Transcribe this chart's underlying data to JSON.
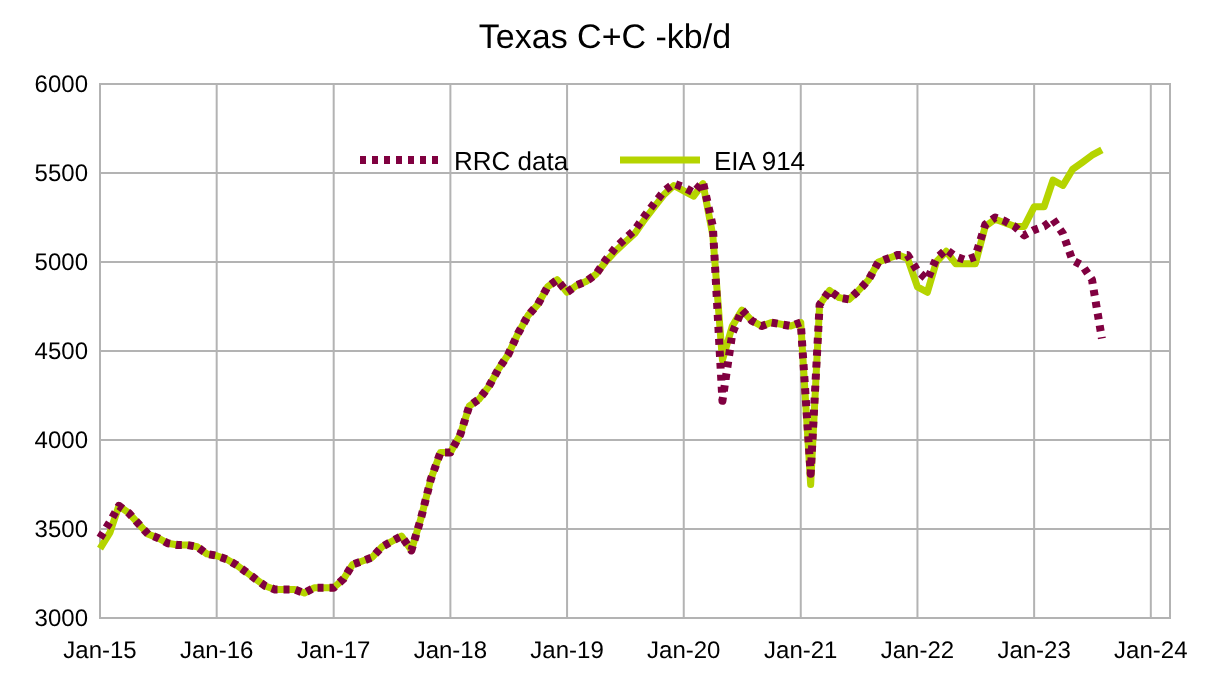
{
  "chart_data": {
    "type": "line",
    "title": "Texas C+C -kb/d",
    "legend": "top",
    "grid": true,
    "x": [
      "2015-01",
      "2015-02",
      "2015-03",
      "2015-04",
      "2015-05",
      "2015-06",
      "2015-07",
      "2015-08",
      "2015-09",
      "2015-10",
      "2015-11",
      "2015-12",
      "2016-01",
      "2016-02",
      "2016-03",
      "2016-04",
      "2016-05",
      "2016-06",
      "2016-07",
      "2016-08",
      "2016-09",
      "2016-10",
      "2016-11",
      "2016-12",
      "2017-01",
      "2017-02",
      "2017-03",
      "2017-04",
      "2017-05",
      "2017-06",
      "2017-07",
      "2017-08",
      "2017-09",
      "2017-10",
      "2017-11",
      "2017-12",
      "2018-01",
      "2018-02",
      "2018-03",
      "2018-04",
      "2018-05",
      "2018-06",
      "2018-07",
      "2018-08",
      "2018-09",
      "2018-10",
      "2018-11",
      "2018-12",
      "2019-01",
      "2019-02",
      "2019-03",
      "2019-04",
      "2019-05",
      "2019-06",
      "2019-07",
      "2019-08",
      "2019-09",
      "2019-10",
      "2019-11",
      "2019-12",
      "2020-01",
      "2020-02",
      "2020-03",
      "2020-04",
      "2020-05",
      "2020-06",
      "2020-07",
      "2020-08",
      "2020-09",
      "2020-10",
      "2020-11",
      "2020-12",
      "2021-01",
      "2021-02",
      "2021-03",
      "2021-04",
      "2021-05",
      "2021-06",
      "2021-07",
      "2021-08",
      "2021-09",
      "2021-10",
      "2021-11",
      "2021-12",
      "2022-01",
      "2022-02",
      "2022-03",
      "2022-04",
      "2022-05",
      "2022-06",
      "2022-07",
      "2022-08",
      "2022-09",
      "2022-10",
      "2022-11",
      "2022-12",
      "2023-01",
      "2023-02",
      "2023-03",
      "2023-04",
      "2023-05",
      "2023-06",
      "2023-07",
      "2023-08"
    ],
    "xlim": [
      "2015-01",
      "2024-03"
    ],
    "xticks": [
      {
        "value": "2015-01",
        "label": "Jan-15"
      },
      {
        "value": "2016-01",
        "label": "Jan-16"
      },
      {
        "value": "2017-01",
        "label": "Jan-17"
      },
      {
        "value": "2018-01",
        "label": "Jan-18"
      },
      {
        "value": "2019-01",
        "label": "Jan-19"
      },
      {
        "value": "2020-01",
        "label": "Jan-20"
      },
      {
        "value": "2021-01",
        "label": "Jan-21"
      },
      {
        "value": "2022-01",
        "label": "Jan-22"
      },
      {
        "value": "2023-01",
        "label": "Jan-23"
      },
      {
        "value": "2024-01",
        "label": "Jan-24"
      }
    ],
    "ylim": [
      3000,
      6000
    ],
    "yticks": [
      3000,
      3500,
      4000,
      4500,
      5000,
      5500,
      6000
    ],
    "series": [
      {
        "name": "RRC data",
        "color": "#800040",
        "line_style": "dotted",
        "values": [
          3450,
          3540,
          3630,
          3590,
          3530,
          3470,
          3450,
          3420,
          3410,
          3410,
          3400,
          3360,
          3350,
          3330,
          3300,
          3260,
          3220,
          3180,
          3160,
          3160,
          3160,
          3140,
          3170,
          3170,
          3170,
          3220,
          3300,
          3320,
          3340,
          3400,
          3430,
          3460,
          3380,
          3560,
          3780,
          3930,
          3930,
          4030,
          4190,
          4230,
          4300,
          4400,
          4480,
          4600,
          4700,
          4760,
          4860,
          4900,
          4830,
          4870,
          4890,
          4930,
          5010,
          5080,
          5130,
          5180,
          5260,
          5330,
          5400,
          5440,
          5420,
          5390,
          5450,
          5200,
          4220,
          4600,
          4730,
          4670,
          4640,
          4660,
          4650,
          4640,
          4660,
          3810,
          4760,
          4840,
          4800,
          4790,
          4840,
          4900,
          5000,
          5020,
          5040,
          5040,
          4950,
          4900,
          5020,
          5070,
          5030,
          5010,
          5030,
          5210,
          5250,
          5230,
          5200,
          5150,
          5180,
          5200,
          5240,
          5160,
          5010,
          4980,
          4900,
          4570
        ]
      },
      {
        "name": "EIA 914",
        "color": "#b5d400",
        "line_style": "solid",
        "values": [
          3390,
          3480,
          3630,
          3590,
          3530,
          3470,
          3450,
          3420,
          3410,
          3410,
          3400,
          3360,
          3350,
          3330,
          3300,
          3260,
          3220,
          3180,
          3160,
          3160,
          3160,
          3140,
          3170,
          3170,
          3170,
          3220,
          3300,
          3320,
          3340,
          3400,
          3430,
          3460,
          3380,
          3560,
          3780,
          3930,
          3930,
          4030,
          4190,
          4230,
          4300,
          4400,
          4480,
          4600,
          4700,
          4760,
          4860,
          4900,
          4830,
          4870,
          4890,
          4930,
          5000,
          5060,
          5110,
          5160,
          5240,
          5310,
          5380,
          5430,
          5400,
          5370,
          5440,
          5150,
          4450,
          4640,
          4730,
          4670,
          4640,
          4660,
          4650,
          4640,
          4660,
          3750,
          4760,
          4840,
          4800,
          4790,
          4840,
          4900,
          5000,
          5020,
          5040,
          5020,
          4860,
          4830,
          5000,
          5060,
          4990,
          4990,
          4990,
          5200,
          5240,
          5220,
          5200,
          5200,
          5310,
          5310,
          5460,
          5430,
          5520,
          5560,
          5600,
          5630
        ]
      }
    ]
  }
}
